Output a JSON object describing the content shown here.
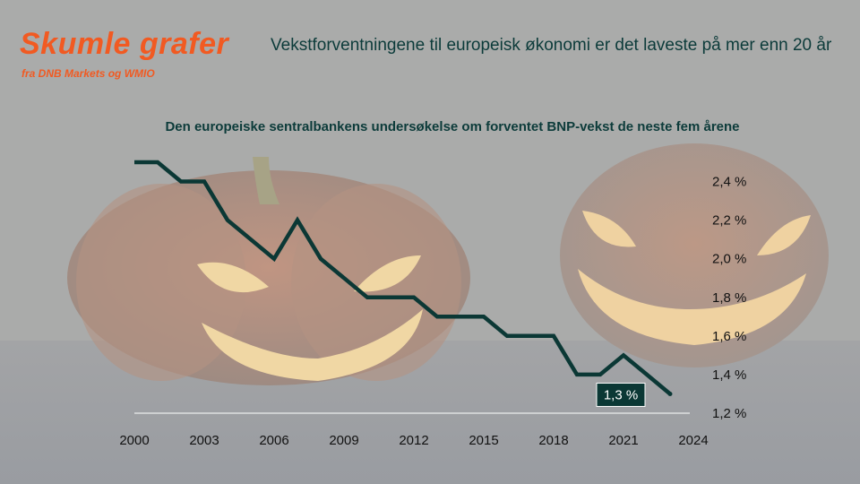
{
  "brand": {
    "title": "Skumle grafer",
    "subtitle": "fra DNB Markets og WMIO"
  },
  "headline": "Vekstforventningene til europeisk økonomi er det laveste på mer enn 20 år",
  "colors": {
    "brand_orange": "#f15a22",
    "line": "#0b3835",
    "text_dark": "#0c3b3a",
    "background": "#a8a9a8"
  },
  "chart_data": {
    "type": "line",
    "title": "Den europeiske sentralbankens undersøkelse om forventet BNP-vekst de neste fem årene",
    "xlabel": "",
    "ylabel": "",
    "x": [
      2000,
      2001,
      2002,
      2003,
      2004,
      2005,
      2006,
      2007,
      2008,
      2009,
      2010,
      2011,
      2012,
      2013,
      2014,
      2015,
      2016,
      2017,
      2018,
      2019,
      2020,
      2021,
      2022,
      2023
    ],
    "series": [
      {
        "name": "",
        "values": [
          2.5,
          2.5,
          2.4,
          2.4,
          2.2,
          2.1,
          2.0,
          2.2,
          2.0,
          1.9,
          1.8,
          1.8,
          1.8,
          1.7,
          1.7,
          1.7,
          1.6,
          1.6,
          1.6,
          1.4,
          1.4,
          1.5,
          1.4,
          1.3
        ]
      }
    ],
    "x_ticks": [
      "2000",
      "2003",
      "2006",
      "2009",
      "2012",
      "2015",
      "2018",
      "2021",
      "2024"
    ],
    "y_ticks": [
      "2,4 %",
      "2,2 %",
      "2,0 %",
      "1,8 %",
      "1,6 %",
      "1,4 %",
      "1,2 %"
    ],
    "y_tick_values": [
      2.4,
      2.2,
      2.0,
      1.8,
      1.6,
      1.4,
      1.2
    ],
    "xlim": [
      2000,
      2024
    ],
    "ylim": [
      1.2,
      2.5
    ],
    "y_axis_side": "right",
    "grid": false,
    "annotation": {
      "label": "1,3 %",
      "x": 2023,
      "y": 1.3
    }
  }
}
